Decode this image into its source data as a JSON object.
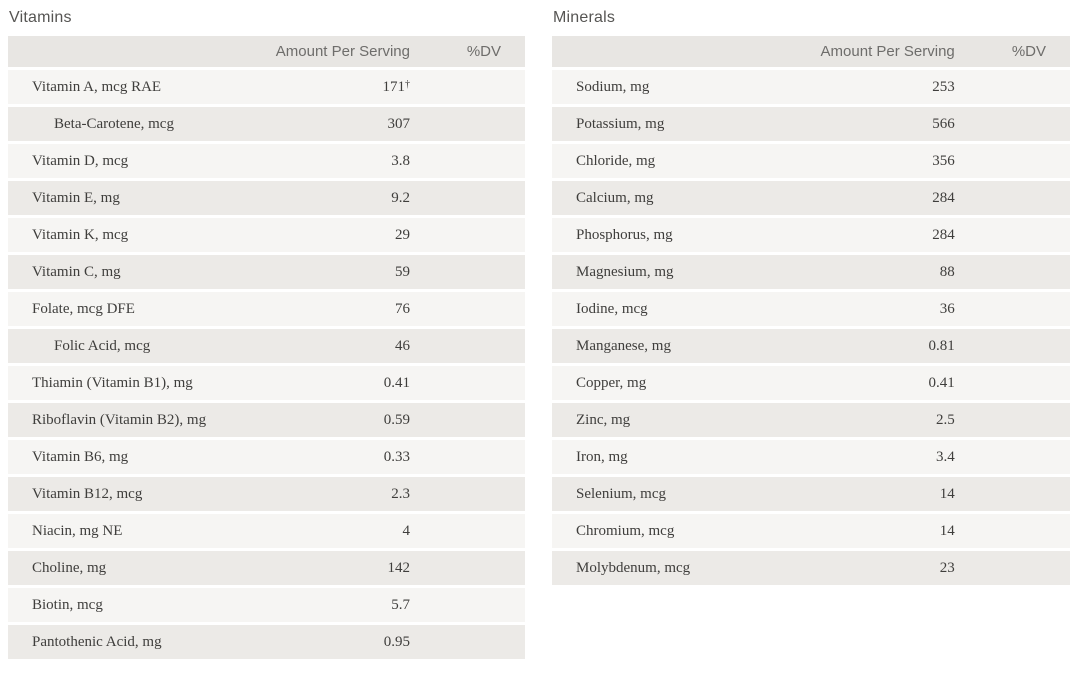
{
  "colors": {
    "header_row_bg": "#e8e6e3",
    "row_light_bg": "#f6f5f3",
    "row_dark_bg": "#eceae7",
    "row_text": "#3f3e3c",
    "column_header_text": "#6e6d6b",
    "title_text": "#565553",
    "page_bg": "#ffffff"
  },
  "tables": [
    {
      "title": "Vitamins",
      "columns": {
        "amount": "Amount Per Serving",
        "dv": "%DV"
      },
      "rows": [
        {
          "name": "Vitamin A, mcg RAE",
          "indent": false,
          "amount": "171",
          "note": "†",
          "dv": ""
        },
        {
          "name": "Beta-Carotene, mcg",
          "indent": true,
          "amount": "307",
          "note": "",
          "dv": ""
        },
        {
          "name": "Vitamin D, mcg",
          "indent": false,
          "amount": "3.8",
          "note": "",
          "dv": ""
        },
        {
          "name": "Vitamin E, mg",
          "indent": false,
          "amount": "9.2",
          "note": "",
          "dv": ""
        },
        {
          "name": "Vitamin K, mcg",
          "indent": false,
          "amount": "29",
          "note": "",
          "dv": ""
        },
        {
          "name": "Vitamin C, mg",
          "indent": false,
          "amount": "59",
          "note": "",
          "dv": ""
        },
        {
          "name": "Folate, mcg DFE",
          "indent": false,
          "amount": "76",
          "note": "",
          "dv": ""
        },
        {
          "name": "Folic Acid, mcg",
          "indent": true,
          "amount": "46",
          "note": "",
          "dv": ""
        },
        {
          "name": "Thiamin (Vitamin B1), mg",
          "indent": false,
          "amount": "0.41",
          "note": "",
          "dv": ""
        },
        {
          "name": "Riboflavin (Vitamin B2), mg",
          "indent": false,
          "amount": "0.59",
          "note": "",
          "dv": ""
        },
        {
          "name": "Vitamin B6, mg",
          "indent": false,
          "amount": "0.33",
          "note": "",
          "dv": ""
        },
        {
          "name": "Vitamin B12, mcg",
          "indent": false,
          "amount": "2.3",
          "note": "",
          "dv": ""
        },
        {
          "name": "Niacin, mg NE",
          "indent": false,
          "amount": "4",
          "note": "",
          "dv": ""
        },
        {
          "name": "Choline, mg",
          "indent": false,
          "amount": "142",
          "note": "",
          "dv": ""
        },
        {
          "name": "Biotin, mcg",
          "indent": false,
          "amount": "5.7",
          "note": "",
          "dv": ""
        },
        {
          "name": "Pantothenic Acid, mg",
          "indent": false,
          "amount": "0.95",
          "note": "",
          "dv": ""
        }
      ]
    },
    {
      "title": "Minerals",
      "columns": {
        "amount": "Amount Per Serving",
        "dv": "%DV"
      },
      "rows": [
        {
          "name": "Sodium, mg",
          "indent": false,
          "amount": "253",
          "note": "",
          "dv": ""
        },
        {
          "name": "Potassium, mg",
          "indent": false,
          "amount": "566",
          "note": "",
          "dv": ""
        },
        {
          "name": "Chloride, mg",
          "indent": false,
          "amount": "356",
          "note": "",
          "dv": ""
        },
        {
          "name": "Calcium, mg",
          "indent": false,
          "amount": "284",
          "note": "",
          "dv": ""
        },
        {
          "name": "Phosphorus, mg",
          "indent": false,
          "amount": "284",
          "note": "",
          "dv": ""
        },
        {
          "name": "Magnesium, mg",
          "indent": false,
          "amount": "88",
          "note": "",
          "dv": ""
        },
        {
          "name": "Iodine, mcg",
          "indent": false,
          "amount": "36",
          "note": "",
          "dv": ""
        },
        {
          "name": "Manganese, mg",
          "indent": false,
          "amount": "0.81",
          "note": "",
          "dv": ""
        },
        {
          "name": "Copper, mg",
          "indent": false,
          "amount": "0.41",
          "note": "",
          "dv": ""
        },
        {
          "name": "Zinc, mg",
          "indent": false,
          "amount": "2.5",
          "note": "",
          "dv": ""
        },
        {
          "name": "Iron, mg",
          "indent": false,
          "amount": "3.4",
          "note": "",
          "dv": ""
        },
        {
          "name": "Selenium, mcg",
          "indent": false,
          "amount": "14",
          "note": "",
          "dv": ""
        },
        {
          "name": "Chromium, mcg",
          "indent": false,
          "amount": "14",
          "note": "",
          "dv": ""
        },
        {
          "name": "Molybdenum, mcg",
          "indent": false,
          "amount": "23",
          "note": "",
          "dv": ""
        }
      ]
    }
  ]
}
